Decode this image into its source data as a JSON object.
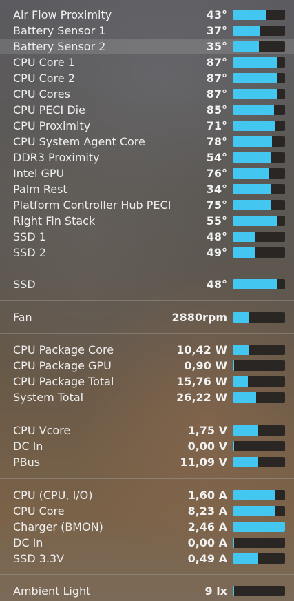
{
  "accent_color": "#43c6f0",
  "groups": [
    {
      "name": "temperatures",
      "rows": [
        {
          "label": "Air Flow Proximity",
          "value": "43°",
          "level": 0.64
        },
        {
          "label": "Battery Sensor 1",
          "value": "37°",
          "level": 0.53
        },
        {
          "label": "Battery Sensor 2",
          "value": "35°",
          "level": 0.5,
          "highlighted": true
        },
        {
          "label": "CPU Core 1",
          "value": "87°",
          "level": 0.86
        },
        {
          "label": "CPU Core 2",
          "value": "87°",
          "level": 0.86
        },
        {
          "label": "CPU Cores",
          "value": "87°",
          "level": 0.86
        },
        {
          "label": "CPU PECI Die",
          "value": "85°",
          "level": 0.79
        },
        {
          "label": "CPU Proximity",
          "value": "71°",
          "level": 0.8
        },
        {
          "label": "CPU System Agent Core",
          "value": "78°",
          "level": 0.75
        },
        {
          "label": "DDR3 Proximity",
          "value": "54°",
          "level": 0.72
        },
        {
          "label": "Intel GPU",
          "value": "76°",
          "level": 0.68
        },
        {
          "label": "Palm Rest",
          "value": "34°",
          "level": 0.73
        },
        {
          "label": "Platform Controller Hub PECI",
          "value": "75°",
          "level": 0.73
        },
        {
          "label": "Right Fin Stack",
          "value": "55°",
          "level": 0.86
        },
        {
          "label": "SSD 1",
          "value": "48°",
          "level": 0.43
        },
        {
          "label": "SSD 2",
          "value": "49°",
          "level": 0.43
        }
      ]
    },
    {
      "name": "disks",
      "rows": [
        {
          "label": "SSD",
          "value": "48°",
          "level": 0.84
        }
      ]
    },
    {
      "name": "fans",
      "rows": [
        {
          "label": "Fan",
          "value": "2880rpm",
          "level": 0.32
        }
      ]
    },
    {
      "name": "power",
      "rows": [
        {
          "label": "CPU Package Core",
          "value": "10,42 W",
          "level": 0.3
        },
        {
          "label": "CPU Package GPU",
          "value": "0,90 W",
          "level": 0.03
        },
        {
          "label": "CPU Package Total",
          "value": "15,76 W",
          "level": 0.29
        },
        {
          "label": "System Total",
          "value": "26,22 W",
          "level": 0.45
        }
      ]
    },
    {
      "name": "voltage",
      "rows": [
        {
          "label": "CPU Vcore",
          "value": "1,75 V",
          "level": 0.49
        },
        {
          "label": "DC In",
          "value": "0,00 V",
          "level": 0.0
        },
        {
          "label": "PBus",
          "value": "11,09 V",
          "level": 0.47
        }
      ]
    },
    {
      "name": "current",
      "rows": [
        {
          "label": "CPU (CPU, I/O)",
          "value": "1,60 A",
          "level": 0.82
        },
        {
          "label": "CPU Core",
          "value": "8,23 A",
          "level": 0.82
        },
        {
          "label": "Charger (BMON)",
          "value": "2,46 A",
          "level": 1.0
        },
        {
          "label": "DC In",
          "value": "0,00 A",
          "level": 0.02
        },
        {
          "label": "SSD 3.3V",
          "value": "0,49 A",
          "level": 0.49
        }
      ]
    },
    {
      "name": "light",
      "rows": [
        {
          "label": "Ambient Light",
          "value": "9 lx",
          "level": 0.02
        }
      ]
    }
  ]
}
